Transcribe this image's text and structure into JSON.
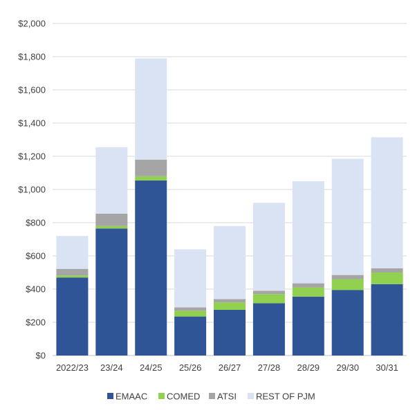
{
  "chart_data": {
    "type": "bar",
    "stacked": true,
    "title": "",
    "xlabel": "",
    "ylabel": "",
    "categories": [
      "2022/23",
      "23/24",
      "24/25",
      "25/26",
      "26/27",
      "27/28",
      "28/29",
      "29/30",
      "30/31"
    ],
    "ylim": [
      0,
      2000
    ],
    "yticks": [
      0,
      200,
      400,
      600,
      800,
      1000,
      1200,
      1400,
      1600,
      1800,
      2000
    ],
    "ytick_labels": [
      "$0",
      "$200",
      "$400",
      "$600",
      "$800",
      "$1,000",
      "$1,200",
      "$1,400",
      "$1,600",
      "$1,800",
      "$2,000"
    ],
    "grid": true,
    "legend_position": "bottom",
    "series": [
      {
        "name": "EMAAC",
        "color": "#2f5597",
        "values": [
          470,
          765,
          1055,
          235,
          275,
          315,
          355,
          395,
          430
        ]
      },
      {
        "name": "COMED",
        "color": "#92d050",
        "values": [
          12,
          15,
          25,
          35,
          45,
          55,
          55,
          65,
          70
        ]
      },
      {
        "name": "ATSI",
        "color": "#a5a5a5",
        "values": [
          40,
          75,
          100,
          20,
          20,
          20,
          25,
          25,
          25
        ]
      },
      {
        "name": "REST OF PJM",
        "color": "#dae3f3",
        "values": [
          198,
          400,
          610,
          350,
          440,
          530,
          615,
          700,
          790
        ]
      }
    ]
  }
}
